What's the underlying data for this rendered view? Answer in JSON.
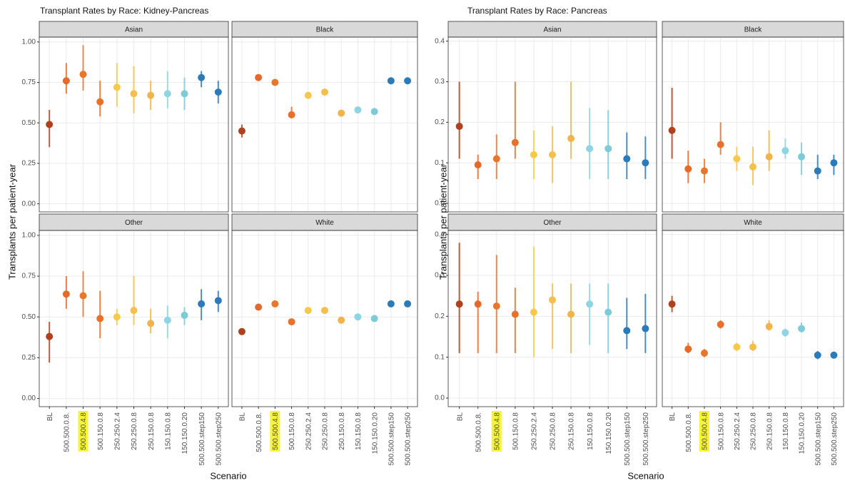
{
  "chart_data": [
    {
      "type": "pointrange",
      "title": "Transplant Rates by Race: Kidney-Pancreas",
      "y_label": "Transplants per patient-year",
      "x_label": "Scenario",
      "categories": [
        "BL",
        "500.500.0.8.",
        "500.500.4.8",
        "500.150.0.8",
        "250.250.2.4",
        "250.250.0.8",
        "250.150.0.8",
        "150.150.0.8",
        "150.150.0.20",
        "500.500.step150",
        "500.500.step250"
      ],
      "colors": [
        "#b1411d",
        "#e5692a",
        "#ea762c",
        "#e8702a",
        "#f7c94b",
        "#f4bf4a",
        "#f1b44a",
        "#8fd4e2",
        "#7dcad8",
        "#2b7bba",
        "#2b7bba"
      ],
      "highlight_index": 2,
      "highlight_color": "#f6f33a",
      "ylim": [
        -0.05,
        1.03
      ],
      "yticks": [
        {
          "value": 0,
          "label": "0.00"
        },
        0.25,
        {
          "value": 0.5,
          "label": "0.50"
        },
        0.75,
        {
          "value": 1,
          "label": "1.00"
        }
      ],
      "grid": true,
      "panels": [
        {
          "name": "Asian",
          "values": [
            0.49,
            0.76,
            0.8,
            0.63,
            0.72,
            0.68,
            0.67,
            0.68,
            0.68,
            0.78,
            0.69
          ],
          "lower": [
            0.35,
            0.68,
            0.7,
            0.54,
            0.6,
            0.56,
            0.58,
            0.59,
            0.58,
            0.72,
            0.62
          ],
          "upper": [
            0.58,
            0.87,
            0.98,
            0.76,
            0.87,
            0.85,
            0.76,
            0.82,
            0.78,
            0.82,
            0.76
          ]
        },
        {
          "name": "Black",
          "values": [
            0.45,
            0.78,
            0.75,
            0.55,
            0.67,
            0.69,
            0.56,
            0.58,
            0.57,
            0.76,
            0.76
          ],
          "lower": [
            0.41,
            0.76,
            0.73,
            0.53,
            0.66,
            0.67,
            0.54,
            0.56,
            0.55,
            0.75,
            0.74
          ],
          "upper": [
            0.49,
            0.8,
            0.77,
            0.6,
            0.69,
            0.71,
            0.58,
            0.6,
            0.59,
            0.77,
            0.78
          ]
        },
        {
          "name": "Other",
          "values": [
            0.38,
            0.64,
            0.63,
            0.49,
            0.5,
            0.54,
            0.46,
            0.48,
            0.51,
            0.58,
            0.6
          ],
          "lower": [
            0.22,
            0.55,
            0.5,
            0.37,
            0.45,
            0.45,
            0.4,
            0.37,
            0.45,
            0.48,
            0.53
          ],
          "upper": [
            0.47,
            0.75,
            0.78,
            0.66,
            0.55,
            0.75,
            0.55,
            0.57,
            0.56,
            0.67,
            0.66
          ]
        },
        {
          "name": "White",
          "values": [
            0.41,
            0.56,
            0.58,
            0.47,
            0.54,
            0.54,
            0.48,
            0.5,
            0.49,
            0.58,
            0.58
          ],
          "lower": [
            0.4,
            0.55,
            0.57,
            0.46,
            0.53,
            0.52,
            0.47,
            0.48,
            0.48,
            0.57,
            0.57
          ],
          "upper": [
            0.42,
            0.57,
            0.59,
            0.49,
            0.56,
            0.55,
            0.49,
            0.51,
            0.5,
            0.59,
            0.59
          ]
        }
      ]
    },
    {
      "type": "pointrange",
      "title": "Transplant Rates by Race: Pancreas",
      "y_label": "Transplants per patient-year",
      "x_label": "Scenario",
      "categories": [
        "BL",
        "500.500.0.8.",
        "500.500.4.8",
        "500.150.0.8",
        "250.250.2.4",
        "250.250.0.8",
        "250.150.0.8",
        "150.150.0.8",
        "150.150.0.20",
        "500.500.step150",
        "500.500.step250"
      ],
      "colors": [
        "#b1411d",
        "#e5692a",
        "#ea762c",
        "#e8702a",
        "#f7c94b",
        "#f4bf4a",
        "#f1b44a",
        "#8fd4e2",
        "#7dcad8",
        "#2b7bba",
        "#2b7bba"
      ],
      "highlight_index": 2,
      "highlight_color": "#f6f33a",
      "ylim": [
        -0.021,
        0.41
      ],
      "yticks": [
        {
          "value": 0,
          "label": "0.0"
        },
        0.1,
        0.2,
        0.3,
        0.4
      ],
      "grid": true,
      "panels": [
        {
          "name": "Asian",
          "values": [
            0.19,
            0.095,
            0.11,
            0.15,
            0.12,
            0.12,
            0.16,
            0.135,
            0.135,
            0.11,
            0.1
          ],
          "lower": [
            0.11,
            0.06,
            0.06,
            0.11,
            0.06,
            0.05,
            0.11,
            0.06,
            0.06,
            0.06,
            0.06
          ],
          "upper": [
            0.3,
            0.12,
            0.17,
            0.3,
            0.18,
            0.19,
            0.3,
            0.235,
            0.23,
            0.175,
            0.165
          ]
        },
        {
          "name": "Black",
          "values": [
            0.18,
            0.085,
            0.08,
            0.145,
            0.11,
            0.09,
            0.115,
            0.13,
            0.115,
            0.08,
            0.1
          ],
          "lower": [
            0.11,
            0.05,
            0.05,
            0.12,
            0.08,
            0.045,
            0.08,
            0.11,
            0.07,
            0.06,
            0.07
          ],
          "upper": [
            0.285,
            0.13,
            0.11,
            0.2,
            0.14,
            0.14,
            0.18,
            0.16,
            0.15,
            0.12,
            0.12
          ]
        },
        {
          "name": "Other",
          "values": [
            0.23,
            0.23,
            0.225,
            0.205,
            0.21,
            0.24,
            0.205,
            0.23,
            0.21,
            0.165,
            0.17
          ],
          "lower": [
            0.11,
            0.11,
            0.11,
            0.11,
            0.1,
            0.12,
            0.11,
            0.13,
            0.11,
            0.12,
            0.11
          ],
          "upper": [
            0.38,
            0.26,
            0.35,
            0.27,
            0.37,
            0.28,
            0.28,
            0.28,
            0.28,
            0.245,
            0.255
          ]
        },
        {
          "name": "White",
          "values": [
            0.23,
            0.12,
            0.11,
            0.18,
            0.125,
            0.125,
            0.175,
            0.16,
            0.17,
            0.105,
            0.105
          ],
          "lower": [
            0.21,
            0.11,
            0.1,
            0.17,
            0.115,
            0.115,
            0.165,
            0.15,
            0.16,
            0.095,
            0.1
          ],
          "upper": [
            0.25,
            0.135,
            0.12,
            0.19,
            0.135,
            0.14,
            0.19,
            0.17,
            0.185,
            0.115,
            0.11
          ]
        }
      ]
    }
  ]
}
